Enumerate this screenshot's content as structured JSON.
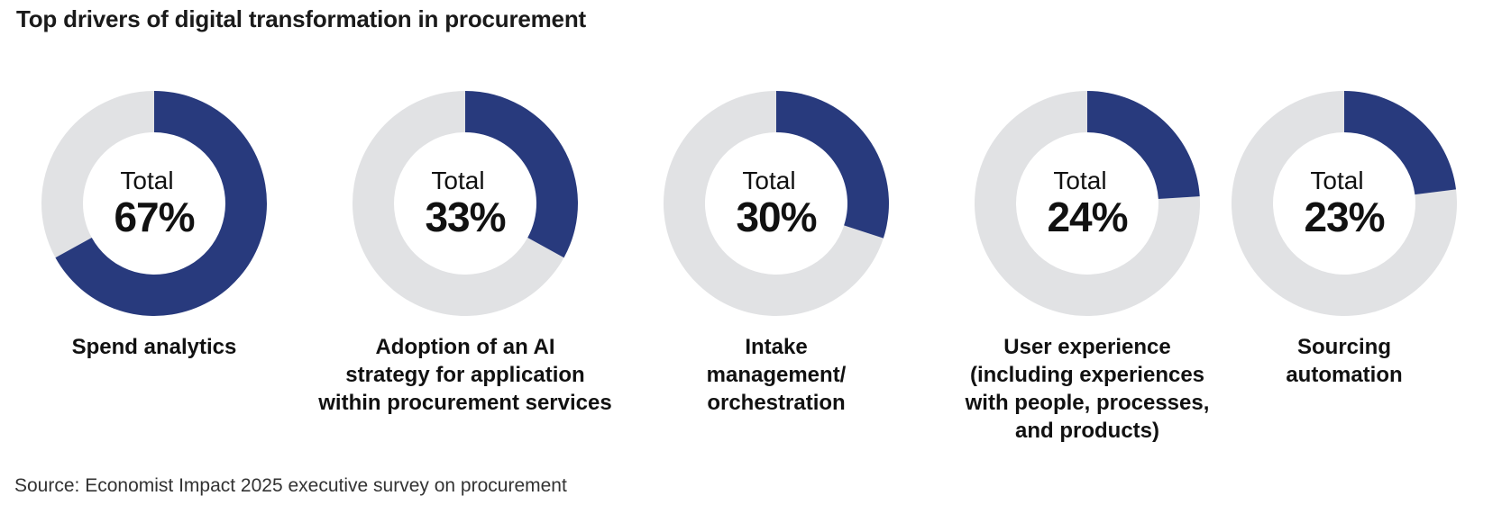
{
  "title": "Top drivers of digital transformation in procurement",
  "source": "Source: Economist Impact 2025 executive survey on procurement",
  "colors": {
    "filled": "#283a7d",
    "remainder": "#e1e2e4"
  },
  "chart_data": [
    {
      "type": "pie",
      "subtype": "donut",
      "center_label": "Total",
      "value": 67,
      "value_text": "67%",
      "category": "Spend analytics"
    },
    {
      "type": "pie",
      "subtype": "donut",
      "center_label": "Total",
      "value": 33,
      "value_text": "33%",
      "category": "Adoption of an AI\nstrategy for application\nwithin procurement services"
    },
    {
      "type": "pie",
      "subtype": "donut",
      "center_label": "Total",
      "value": 30,
      "value_text": "30%",
      "category": "Intake\nmanagement/\norchestration"
    },
    {
      "type": "pie",
      "subtype": "donut",
      "center_label": "Total",
      "value": 24,
      "value_text": "24%",
      "category": "User experience\n(including experiences\nwith people, processes,\nand products)"
    },
    {
      "type": "pie",
      "subtype": "donut",
      "center_label": "Total",
      "value": 23,
      "value_text": "23%",
      "category": "Sourcing\nautomation"
    }
  ]
}
